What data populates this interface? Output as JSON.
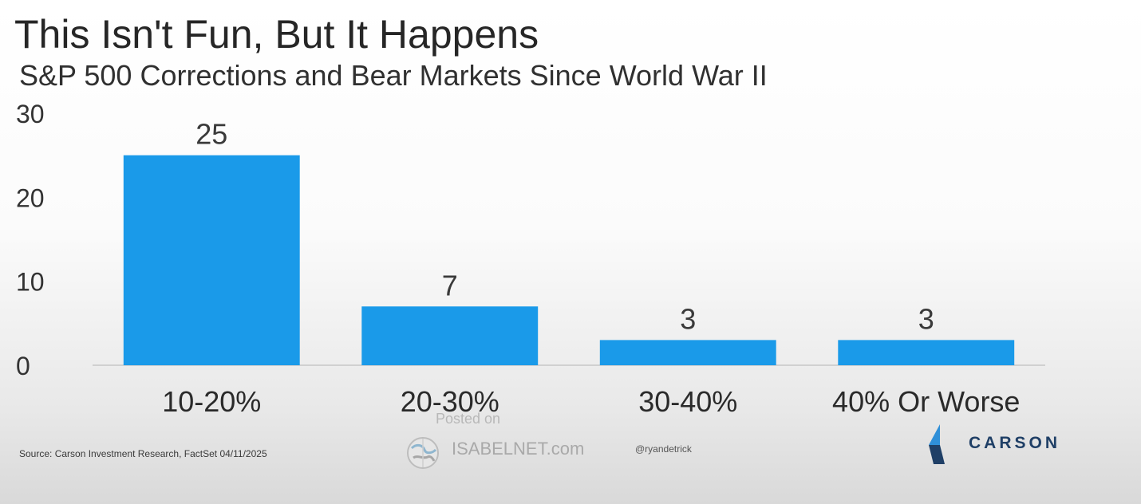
{
  "chart_data": {
    "type": "bar",
    "title": "This Isn't Fun, But It Happens",
    "subtitle": "S&P 500 Corrections and Bear Markets Since World War II",
    "categories": [
      "10-20%",
      "20-30%",
      "30-40%",
      "40% Or Worse"
    ],
    "values": [
      25,
      7,
      3,
      3
    ],
    "data_labels": [
      "25",
      "7",
      "3",
      "3"
    ],
    "xlabel": "",
    "ylabel": "",
    "ylim": [
      0,
      30
    ],
    "yticks": [
      0,
      10,
      20,
      30
    ],
    "grid": false,
    "legend": "none",
    "bar_color": "#1a9ae9"
  },
  "footer": {
    "source": "Source: Carson Investment Research, FactSet 04/11/2025",
    "posted_on": "Posted on",
    "watermark": "ISABELNET.com",
    "handle": "@ryandetrick",
    "brand": "CARSON"
  },
  "colors": {
    "brand": "#1f3f66",
    "brand_accent": "#2f8fd8",
    "bar": "#1a9ae9"
  }
}
